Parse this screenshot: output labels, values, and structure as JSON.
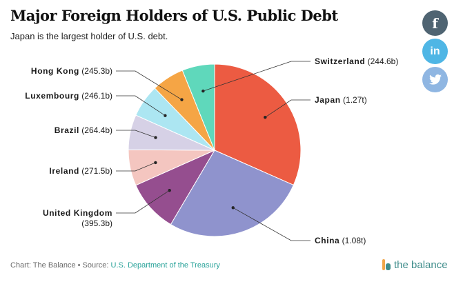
{
  "header": {
    "title": "Major Foreign Holders of U.S. Public Debt",
    "subtitle": "Japan is the largest holder of U.S. debt."
  },
  "share": {
    "facebook_icon": "facebook-icon",
    "linkedin_icon": "linkedin-icon",
    "twitter_icon": "twitter-icon",
    "facebook_label": "f",
    "linkedin_label": "in"
  },
  "chart_data": {
    "type": "pie",
    "title": "Major Foreign Holders of U.S. Public Debt",
    "subtitle": "Japan is the largest holder of U.S. debt.",
    "slices": [
      {
        "name": "Japan",
        "value": 1270,
        "label": "(1.27t)",
        "color": "#ec5b42"
      },
      {
        "name": "China",
        "value": 1080,
        "label": "(1.08t)",
        "color": "#8f93cd"
      },
      {
        "name": "United Kingdom",
        "value": 395.3,
        "label": "(395.3b)",
        "color": "#954e8f"
      },
      {
        "name": "Ireland",
        "value": 271.5,
        "label": "(271.5b)",
        "color": "#f4c6c0"
      },
      {
        "name": "Brazil",
        "value": 264.4,
        "label": "(264.4b)",
        "color": "#d6d1e6"
      },
      {
        "name": "Luxembourg",
        "value": 246.1,
        "label": "(246.1b)",
        "color": "#ace6f2"
      },
      {
        "name": "Hong Kong",
        "value": 245.3,
        "label": "(245.3b)",
        "color": "#f5a545"
      },
      {
        "name": "Switzerland",
        "value": 244.6,
        "label": "(244.6b)",
        "color": "#5fd8bb"
      }
    ],
    "units": "billions of U.S. dollars"
  },
  "footer": {
    "credit": "Chart: The Balance • Source: ",
    "source_link": "U.S. Department of the Treasury"
  },
  "brand": {
    "logo_text": "the balance",
    "logo_icon": "the-balance-logo-icon"
  }
}
